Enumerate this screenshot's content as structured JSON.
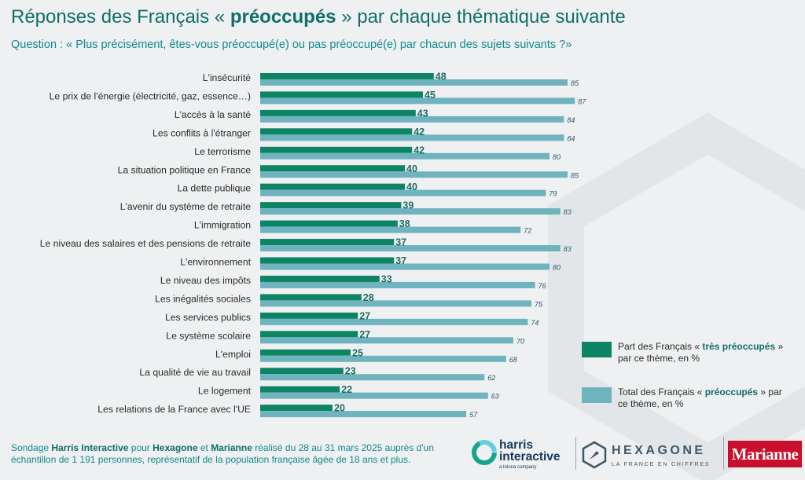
{
  "title": {
    "before": "Réponses des Français « ",
    "bold": "préoccupés",
    "after": " » par chaque thématique suivante"
  },
  "subtitle": "Question : « Plus précisément, êtes-vous préoccupé(e) ou pas préoccupé(e) par chacun des sujets suivants ?»",
  "colors": {
    "main": "#0d8464",
    "total": "#6fb3bf",
    "accent": "#0f6f6a"
  },
  "chart_data": {
    "type": "bar",
    "orientation": "horizontal",
    "categories": [
      "L'insécurité",
      "Le prix de l'énergie (électricité, gaz, essence…)",
      "L'accès à la santé",
      "Les conflits à l'étranger",
      "Le terrorisme",
      "La situation politique en France",
      "La dette publique",
      "L'avenir du système de retraite",
      "L'immigration",
      "Le niveau des salaires et des pensions de retraite",
      "L'environnement",
      "Le niveau des impôts",
      "Les inégalités sociales",
      "Les services publics",
      "Le système scolaire",
      "L'emploi",
      "La qualité de vie au travail",
      "Le logement",
      "Les relations de la France avec l'UE"
    ],
    "series": [
      {
        "name": "Part des Français « très préoccupés » par ce thème, en %",
        "values": [
          48,
          45,
          43,
          42,
          42,
          40,
          40,
          39,
          38,
          37,
          37,
          33,
          28,
          27,
          27,
          25,
          23,
          22,
          20
        ]
      },
      {
        "name": "Total des Français « préoccupés » par ce thème, en %",
        "values": [
          85,
          87,
          84,
          84,
          80,
          85,
          79,
          83,
          72,
          83,
          80,
          76,
          75,
          74,
          70,
          68,
          62,
          63,
          57
        ]
      }
    ],
    "xlim": [
      0,
      100
    ],
    "grid": false,
    "legend": "right"
  },
  "legend": {
    "main": {
      "before": "Part des Français « ",
      "bold": "très préoccupés",
      "after": " » par ce thème, en %"
    },
    "total": {
      "before": "Total des Français « ",
      "bold": "préoccupés",
      "after": " » par ce thème, en %"
    }
  },
  "footer": {
    "p1": "Sondage ",
    "b1": "Harris Interactive",
    "p2": " pour ",
    "b2": "Hexagone",
    "p3": " et ",
    "b3": "Marianne",
    "p4": " réalisé du 28 au 31 mars 2025 auprès d'un échantillon de 1 191 personnes, représentatif de la population française âgée de 18 ans et plus."
  },
  "logos": {
    "harris": {
      "name_line1": "harris",
      "name_line2": "interactive",
      "tag": "a toluna company"
    },
    "hexagone": {
      "name": "HEXAGONE",
      "tag": "LA FRANCE EN CHIFFRES"
    },
    "marianne": {
      "name": "Marianne"
    }
  }
}
